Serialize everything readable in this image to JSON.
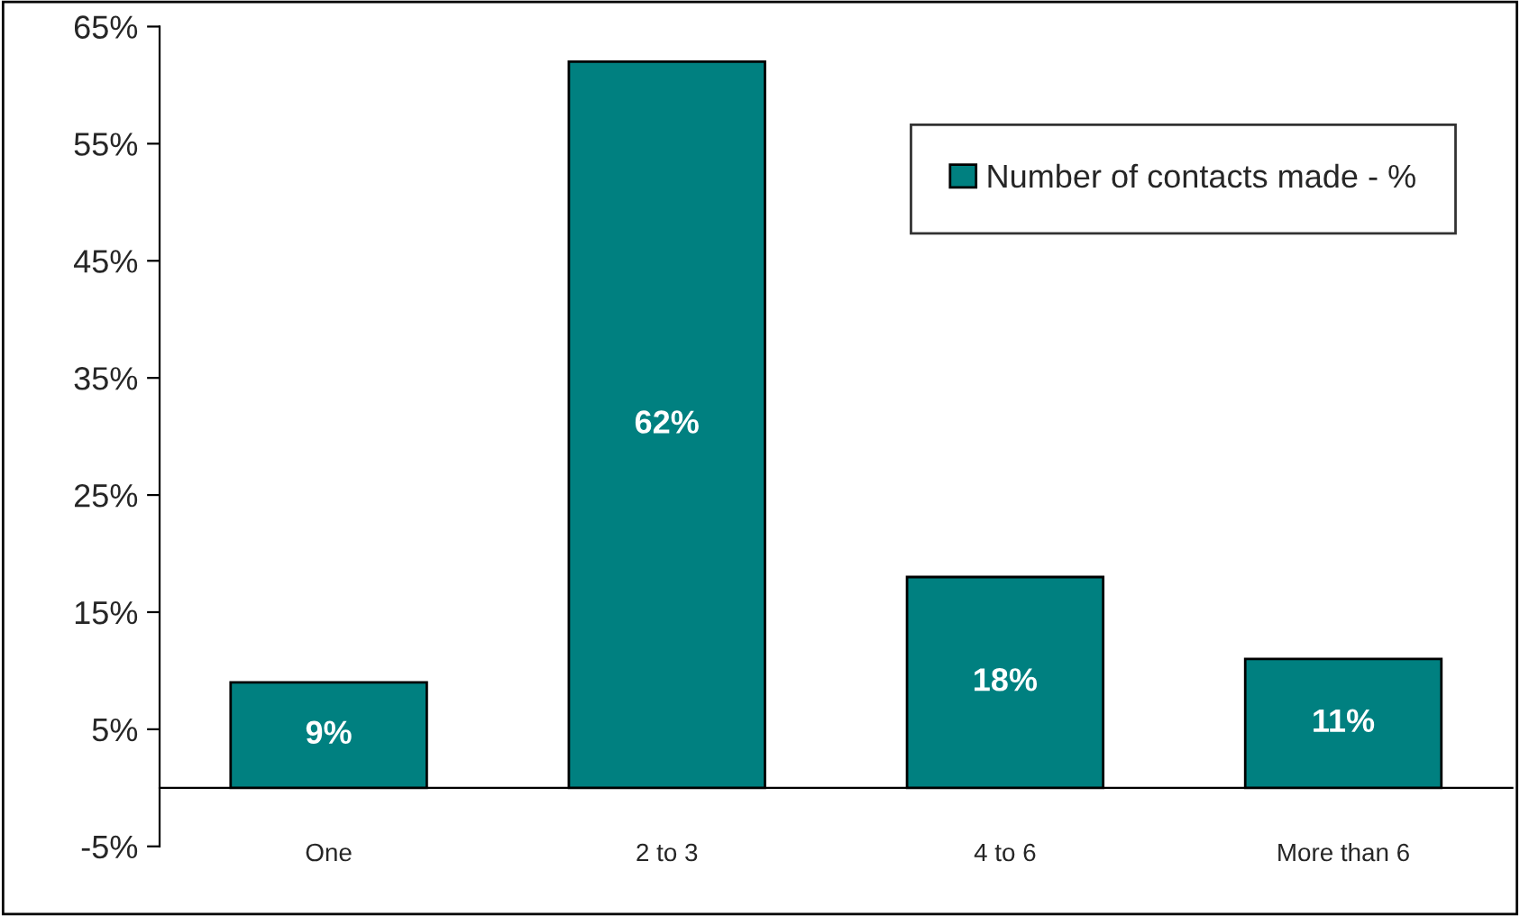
{
  "chart_data": {
    "type": "bar",
    "categories": [
      "One",
      "2 to 3",
      "4 to 6",
      "More than 6"
    ],
    "series": [
      {
        "name": "Number of contacts made - %",
        "color": "#008080",
        "values": [
          9,
          62,
          18,
          11
        ]
      }
    ],
    "ylim": [
      -5,
      65
    ],
    "yticks": [
      {
        "value": -5,
        "label": "-5%"
      },
      {
        "value": 5,
        "label": "5%"
      },
      {
        "value": 15,
        "label": "15%"
      },
      {
        "value": 25,
        "label": "25%"
      },
      {
        "value": 35,
        "label": "35%"
      },
      {
        "value": 45,
        "label": "45%"
      },
      {
        "value": 55,
        "label": "55%"
      },
      {
        "value": 65,
        "label": "65%"
      }
    ],
    "value_labels": [
      "9%",
      "62%",
      "18%",
      "11%"
    ],
    "grid": false,
    "legend": "top right"
  }
}
